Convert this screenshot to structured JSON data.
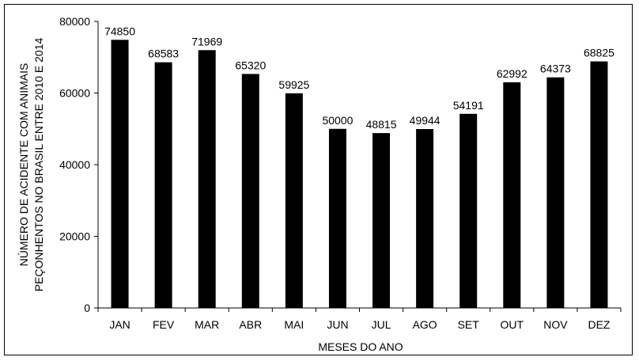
{
  "chart_data": {
    "type": "bar",
    "title": "",
    "categories": [
      "JAN",
      "FEV",
      "MAR",
      "ABR",
      "MAI",
      "JUN",
      "JUL",
      "AGO",
      "SET",
      "OUT",
      "NOV",
      "DEZ"
    ],
    "values": [
      74850,
      68583,
      71969,
      65320,
      59925,
      50000,
      48815,
      49944,
      54191,
      62992,
      64373,
      68825
    ],
    "data_labels": [
      "74850",
      "68583",
      "71969",
      "65320",
      "59925",
      "50000",
      "48815",
      "49944",
      "54191",
      "62992",
      "64373",
      "68825"
    ],
    "xlabel": "MESES DO ANO",
    "ylabel_lines": [
      "NÚMERO DE ACIDENTE COM ANIMAIS",
      "PEÇONHENTOS NO BRASIL ENTRE 2010 E 2014"
    ],
    "ylim": [
      0,
      80000
    ],
    "yticks": [
      0,
      20000,
      40000,
      60000,
      80000
    ],
    "ytick_labels": [
      "0",
      "20000",
      "40000",
      "60000",
      "80000"
    ],
    "grid": false,
    "legend": "none",
    "bar_color": "#000000"
  }
}
